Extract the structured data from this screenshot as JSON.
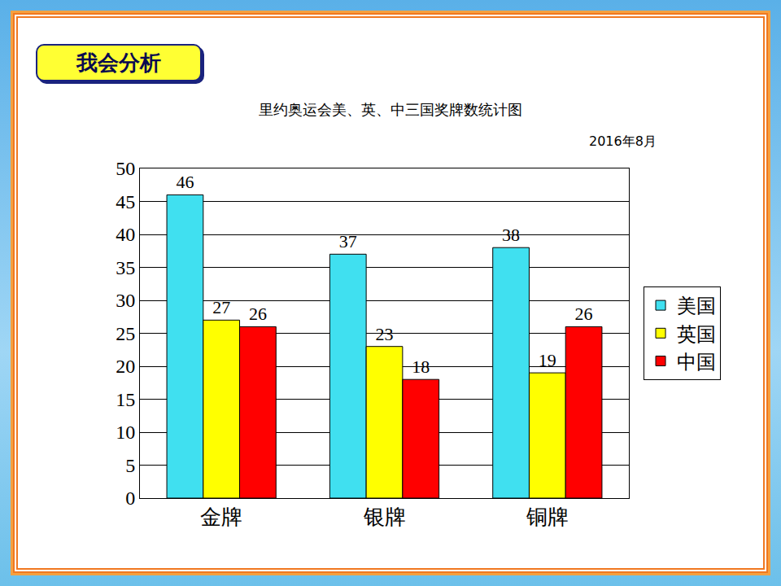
{
  "header": "我会分析",
  "chart_data": {
    "type": "bar",
    "title": "里约奥运会美、英、中三国奖牌数统计图",
    "subtitle": "2016年8月",
    "categories": [
      "金牌",
      "银牌",
      "铜牌"
    ],
    "series": [
      {
        "name": "美国",
        "color": "#40e0f0",
        "values": [
          46,
          37,
          38
        ]
      },
      {
        "name": "英国",
        "color": "#ffff00",
        "values": [
          27,
          23,
          19
        ]
      },
      {
        "name": "中国",
        "color": "#ff0000",
        "values": [
          26,
          18,
          26
        ]
      }
    ],
    "ylim": [
      0,
      50
    ],
    "yticks": [
      0,
      5,
      10,
      15,
      20,
      25,
      30,
      35,
      40,
      45,
      50
    ],
    "grid": true,
    "legend": "right",
    "data_labels": true
  }
}
